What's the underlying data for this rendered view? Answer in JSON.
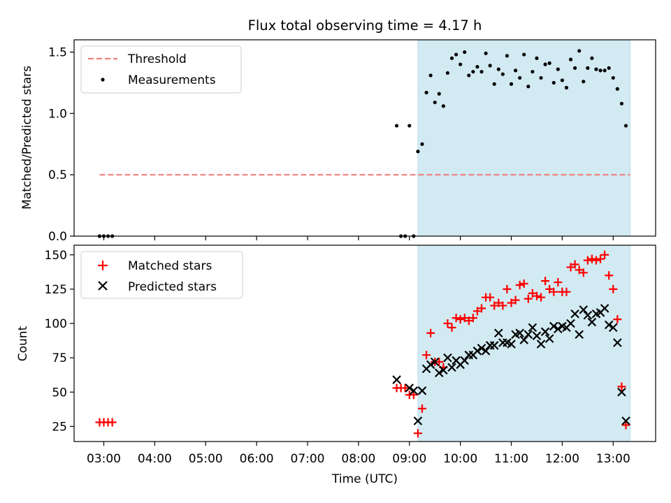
{
  "chart_data": [
    {
      "type": "scatter",
      "title": "Flux total observing time = 4.17 h",
      "xlabel": "",
      "ylabel": "Matched/Predicted stars",
      "xlim": [
        "02:25",
        "13:50"
      ],
      "ylim": [
        0,
        1.6
      ],
      "yticks": [
        "0.0",
        "0.5",
        "1.0",
        "1.5"
      ],
      "shaded_interval": [
        "09:10",
        "13:20"
      ],
      "shade_color": "#add8e6",
      "legend_position": "top-left",
      "threshold": {
        "name": "Threshold",
        "value": 0.5,
        "x_range": [
          "02:55",
          "13:20"
        ],
        "color": "#f08080"
      },
      "series": [
        {
          "name": "Measurements",
          "color": "#000000",
          "points": [
            [
              "02:55",
              0
            ],
            [
              "03:00",
              0
            ],
            [
              "03:05",
              0
            ],
            [
              "03:10",
              0
            ],
            [
              "08:45",
              0.9
            ],
            [
              "08:50",
              0
            ],
            [
              "08:55",
              0
            ],
            [
              "09:00",
              0.9
            ],
            [
              "09:05",
              0
            ],
            [
              "09:10",
              0.69
            ],
            [
              "09:15",
              0.75
            ],
            [
              "09:20",
              1.17
            ],
            [
              "09:25",
              1.31
            ],
            [
              "09:30",
              1.09
            ],
            [
              "09:35",
              1.16
            ],
            [
              "09:40",
              1.06
            ],
            [
              "09:45",
              1.33
            ],
            [
              "09:50",
              1.45
            ],
            [
              "09:55",
              1.48
            ],
            [
              "10:00",
              1.4
            ],
            [
              "10:05",
              1.5
            ],
            [
              "10:10",
              1.31
            ],
            [
              "10:15",
              1.34
            ],
            [
              "10:20",
              1.38
            ],
            [
              "10:25",
              1.34
            ],
            [
              "10:30",
              1.49
            ],
            [
              "10:35",
              1.39
            ],
            [
              "10:40",
              1.24
            ],
            [
              "10:45",
              1.36
            ],
            [
              "10:50",
              1.32
            ],
            [
              "10:55",
              1.47
            ],
            [
              "11:00",
              1.24
            ],
            [
              "11:05",
              1.35
            ],
            [
              "11:10",
              1.29
            ],
            [
              "11:15",
              1.48
            ],
            [
              "11:20",
              1.22
            ],
            [
              "11:25",
              1.34
            ],
            [
              "11:30",
              1.45
            ],
            [
              "11:35",
              1.29
            ],
            [
              "11:40",
              1.4
            ],
            [
              "11:45",
              1.41
            ],
            [
              "11:50",
              1.25
            ],
            [
              "11:55",
              1.36
            ],
            [
              "12:00",
              1.27
            ],
            [
              "12:05",
              1.21
            ],
            [
              "12:10",
              1.44
            ],
            [
              "12:15",
              1.37
            ],
            [
              "12:20",
              1.51
            ],
            [
              "12:25",
              1.26
            ],
            [
              "12:30",
              1.37
            ],
            [
              "12:35",
              1.45
            ],
            [
              "12:40",
              1.36
            ],
            [
              "12:45",
              1.35
            ],
            [
              "12:50",
              1.35
            ],
            [
              "12:55",
              1.37
            ],
            [
              "13:00",
              1.29
            ],
            [
              "13:05",
              1.2
            ],
            [
              "13:10",
              1.08
            ],
            [
              "13:15",
              0.9
            ]
          ]
        }
      ]
    },
    {
      "type": "scatter",
      "title": "",
      "xlabel": "Time (UTC)",
      "ylabel": "Count",
      "xlim": [
        "02:25",
        "13:50"
      ],
      "ylim": [
        14,
        157
      ],
      "xticks": [
        "03:00",
        "04:00",
        "05:00",
        "06:00",
        "07:00",
        "08:00",
        "09:00",
        "10:00",
        "11:00",
        "12:00",
        "13:00"
      ],
      "yticks": [
        "25",
        "50",
        "75",
        "100",
        "125",
        "150"
      ],
      "shaded_interval": [
        "09:10",
        "13:20"
      ],
      "shade_color": "#add8e6",
      "legend_position": "top-left",
      "series": [
        {
          "name": "Matched stars",
          "marker": "plus",
          "color": "#ff0000",
          "points": [
            [
              "02:55",
              28
            ],
            [
              "03:00",
              28
            ],
            [
              "03:05",
              28
            ],
            [
              "03:10",
              28
            ],
            [
              "08:45",
              53
            ],
            [
              "08:50",
              53
            ],
            [
              "08:55",
              53
            ],
            [
              "09:00",
              48
            ],
            [
              "09:05",
              48
            ],
            [
              "09:10",
              20
            ],
            [
              "09:15",
              38
            ],
            [
              "09:20",
              77
            ],
            [
              "09:25",
              93
            ],
            [
              "09:30",
              72
            ],
            [
              "09:35",
              72
            ],
            [
              "09:40",
              68
            ],
            [
              "09:45",
              100
            ],
            [
              "09:50",
              97
            ],
            [
              "09:55",
              104
            ],
            [
              "10:00",
              103
            ],
            [
              "10:05",
              104
            ],
            [
              "10:10",
              102
            ],
            [
              "10:15",
              104
            ],
            [
              "10:20",
              109
            ],
            [
              "10:25",
              111
            ],
            [
              "10:30",
              119
            ],
            [
              "10:35",
              119
            ],
            [
              "10:40",
              113
            ],
            [
              "10:45",
              115
            ],
            [
              "10:50",
              113
            ],
            [
              "10:55",
              125
            ],
            [
              "11:00",
              115
            ],
            [
              "11:05",
              117
            ],
            [
              "11:10",
              128
            ],
            [
              "11:15",
              129
            ],
            [
              "11:20",
              118
            ],
            [
              "11:25",
              122
            ],
            [
              "11:30",
              120
            ],
            [
              "11:35",
              119
            ],
            [
              "11:40",
              131
            ],
            [
              "11:45",
              125
            ],
            [
              "11:50",
              123
            ],
            [
              "11:55",
              130
            ],
            [
              "12:00",
              123
            ],
            [
              "12:05",
              123
            ],
            [
              "12:10",
              141
            ],
            [
              "12:15",
              143
            ],
            [
              "12:20",
              139
            ],
            [
              "12:25",
              137
            ],
            [
              "12:30",
              146
            ],
            [
              "12:35",
              147
            ],
            [
              "12:40",
              146
            ],
            [
              "12:45",
              147
            ],
            [
              "12:50",
              150
            ],
            [
              "12:55",
              135
            ],
            [
              "13:00",
              125
            ],
            [
              "13:05",
              103
            ],
            [
              "13:10",
              54
            ],
            [
              "13:15",
              26
            ]
          ]
        },
        {
          "name": "Predicted stars",
          "marker": "x",
          "color": "#000000",
          "points": [
            [
              "08:45",
              59
            ],
            [
              "09:00",
              53
            ],
            [
              "09:05",
              51
            ],
            [
              "09:10",
              29
            ],
            [
              "09:15",
              51
            ],
            [
              "09:20",
              67
            ],
            [
              "09:25",
              70
            ],
            [
              "09:30",
              72
            ],
            [
              "09:35",
              64
            ],
            [
              "09:40",
              66
            ],
            [
              "09:45",
              75
            ],
            [
              "09:50",
              68
            ],
            [
              "09:55",
              73
            ],
            [
              "10:00",
              70
            ],
            [
              "10:05",
              73
            ],
            [
              "10:10",
              77
            ],
            [
              "10:15",
              77
            ],
            [
              "10:20",
              80
            ],
            [
              "10:25",
              82
            ],
            [
              "10:30",
              80
            ],
            [
              "10:35",
              84
            ],
            [
              "10:40",
              84
            ],
            [
              "10:45",
              93
            ],
            [
              "10:50",
              86
            ],
            [
              "10:55",
              86
            ],
            [
              "11:00",
              85
            ],
            [
              "11:05",
              92
            ],
            [
              "11:10",
              93
            ],
            [
              "11:15",
              88
            ],
            [
              "11:20",
              92
            ],
            [
              "11:25",
              97
            ],
            [
              "11:30",
              91
            ],
            [
              "11:35",
              85
            ],
            [
              "11:40",
              94
            ],
            [
              "11:45",
              89
            ],
            [
              "11:50",
              98
            ],
            [
              "11:55",
              96
            ],
            [
              "12:00",
              98
            ],
            [
              "12:05",
              97
            ],
            [
              "12:10",
              100
            ],
            [
              "12:15",
              107
            ],
            [
              "12:20",
              92
            ],
            [
              "12:25",
              110
            ],
            [
              "12:30",
              106
            ],
            [
              "12:35",
              101
            ],
            [
              "12:40",
              107
            ],
            [
              "12:45",
              108
            ],
            [
              "12:50",
              111
            ],
            [
              "12:55",
              99
            ],
            [
              "13:00",
              97
            ],
            [
              "13:05",
              86
            ],
            [
              "13:10",
              50
            ],
            [
              "13:15",
              29
            ]
          ]
        }
      ]
    }
  ]
}
